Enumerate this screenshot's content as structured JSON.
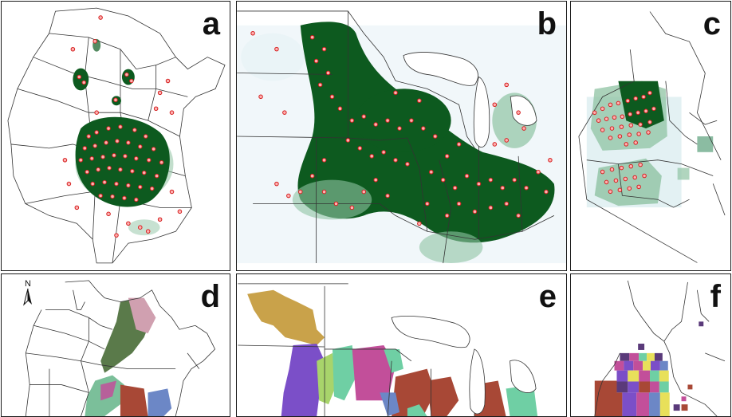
{
  "figure": {
    "panels": [
      {
        "id": "a",
        "label": "a"
      },
      {
        "id": "b",
        "label": "b"
      },
      {
        "id": "c",
        "label": "c"
      },
      {
        "id": "d",
        "label": "d",
        "north_arrow": "N"
      },
      {
        "id": "e",
        "label": "e"
      },
      {
        "id": "f",
        "label": "f"
      }
    ]
  },
  "colors": {
    "crop_density": "#0d5a1f",
    "crop_density_light": "#8fc3a3",
    "site_points_fill": "#ff9b9b",
    "site_points_stroke": "#d42020",
    "boundary": "#333333",
    "zone_colors": [
      "#c9a24a",
      "#7b4fc8",
      "#a8d46b",
      "#c24f9a",
      "#6fcfa4",
      "#a84836",
      "#6c87c6",
      "#d0a0b0",
      "#5a7a4a",
      "#e8e05a",
      "#5a3a7a"
    ]
  }
}
